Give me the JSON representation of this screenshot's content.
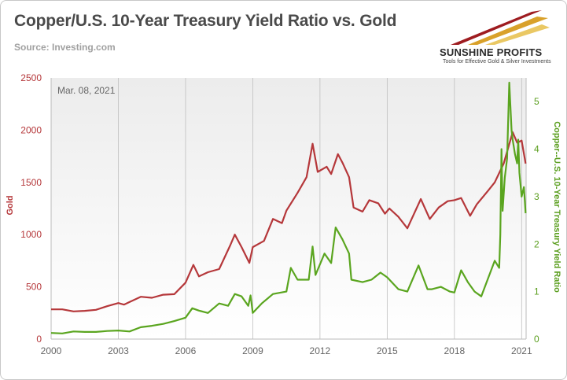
{
  "chart_data": {
    "type": "line",
    "title": "Copper/U.S. 10-Year Treasury Yield Ratio vs. Gold",
    "source": "Source: Investing.com",
    "annotation": "Mar. 08, 2021",
    "xlabel": "",
    "x_ticks": [
      "2000",
      "2003",
      "2006",
      "2009",
      "2012",
      "2015",
      "2018",
      "2021"
    ],
    "xlim": [
      2000,
      2021.2
    ],
    "ylabel_left": "Gold",
    "ylim_left": [
      0,
      2500
    ],
    "yticks_left": [
      "0",
      "500",
      "1000",
      "1500",
      "2000",
      "2500"
    ],
    "ylabel_right": "Copper--U.S. 10-Year Treasury Yield Ratio",
    "ylim_right": [
      0,
      5.5
    ],
    "yticks_right": [
      "0",
      "1",
      "2",
      "3",
      "4",
      "5"
    ],
    "grid": "vertical",
    "colors": {
      "gold": "#b5373a",
      "ratio": "#5aa51f",
      "tick_left": "#b5373a",
      "tick_right": "#5a9e1e"
    },
    "series": [
      {
        "axis": "left",
        "color": "#b5373a",
        "points": [
          [
            2000.0,
            285
          ],
          [
            2000.5,
            285
          ],
          [
            2001.0,
            265
          ],
          [
            2001.5,
            270
          ],
          [
            2002.0,
            280
          ],
          [
            2002.5,
            315
          ],
          [
            2003.0,
            345
          ],
          [
            2003.25,
            330
          ],
          [
            2003.5,
            355
          ],
          [
            2004.0,
            405
          ],
          [
            2004.5,
            395
          ],
          [
            2005.0,
            425
          ],
          [
            2005.5,
            430
          ],
          [
            2006.0,
            540
          ],
          [
            2006.35,
            710
          ],
          [
            2006.6,
            600
          ],
          [
            2007.0,
            640
          ],
          [
            2007.5,
            670
          ],
          [
            2008.0,
            900
          ],
          [
            2008.2,
            1000
          ],
          [
            2008.5,
            880
          ],
          [
            2008.85,
            730
          ],
          [
            2009.0,
            880
          ],
          [
            2009.5,
            940
          ],
          [
            2009.9,
            1150
          ],
          [
            2010.3,
            1110
          ],
          [
            2010.5,
            1230
          ],
          [
            2011.0,
            1400
          ],
          [
            2011.4,
            1550
          ],
          [
            2011.67,
            1870
          ],
          [
            2011.9,
            1600
          ],
          [
            2012.3,
            1650
          ],
          [
            2012.5,
            1580
          ],
          [
            2012.8,
            1770
          ],
          [
            2013.0,
            1690
          ],
          [
            2013.3,
            1550
          ],
          [
            2013.5,
            1260
          ],
          [
            2013.9,
            1220
          ],
          [
            2014.2,
            1330
          ],
          [
            2014.6,
            1300
          ],
          [
            2014.9,
            1200
          ],
          [
            2015.1,
            1250
          ],
          [
            2015.5,
            1170
          ],
          [
            2015.9,
            1060
          ],
          [
            2016.5,
            1340
          ],
          [
            2016.9,
            1150
          ],
          [
            2017.3,
            1260
          ],
          [
            2017.7,
            1320
          ],
          [
            2018.0,
            1330
          ],
          [
            2018.3,
            1350
          ],
          [
            2018.7,
            1180
          ],
          [
            2019.0,
            1290
          ],
          [
            2019.5,
            1420
          ],
          [
            2019.8,
            1500
          ],
          [
            2020.2,
            1680
          ],
          [
            2020.6,
            1980
          ],
          [
            2020.8,
            1880
          ],
          [
            2021.0,
            1900
          ],
          [
            2021.18,
            1680
          ]
        ]
      },
      {
        "axis": "right",
        "color": "#5aa51f",
        "points": [
          [
            2000.0,
            0.13
          ],
          [
            2000.5,
            0.12
          ],
          [
            2001.0,
            0.16
          ],
          [
            2001.5,
            0.15
          ],
          [
            2002.0,
            0.15
          ],
          [
            2002.5,
            0.17
          ],
          [
            2003.0,
            0.18
          ],
          [
            2003.5,
            0.16
          ],
          [
            2004.0,
            0.25
          ],
          [
            2004.5,
            0.28
          ],
          [
            2005.0,
            0.32
          ],
          [
            2005.5,
            0.38
          ],
          [
            2006.0,
            0.45
          ],
          [
            2006.3,
            0.65
          ],
          [
            2006.6,
            0.6
          ],
          [
            2007.0,
            0.55
          ],
          [
            2007.5,
            0.75
          ],
          [
            2007.9,
            0.7
          ],
          [
            2008.2,
            0.95
          ],
          [
            2008.5,
            0.9
          ],
          [
            2008.8,
            0.7
          ],
          [
            2008.9,
            0.92
          ],
          [
            2009.0,
            0.55
          ],
          [
            2009.4,
            0.75
          ],
          [
            2009.9,
            0.95
          ],
          [
            2010.5,
            1.0
          ],
          [
            2010.7,
            1.5
          ],
          [
            2011.0,
            1.25
          ],
          [
            2011.5,
            1.25
          ],
          [
            2011.67,
            1.95
          ],
          [
            2011.8,
            1.35
          ],
          [
            2012.2,
            1.8
          ],
          [
            2012.5,
            1.6
          ],
          [
            2012.7,
            2.35
          ],
          [
            2013.0,
            2.1
          ],
          [
            2013.3,
            1.8
          ],
          [
            2013.4,
            1.25
          ],
          [
            2013.9,
            1.2
          ],
          [
            2014.3,
            1.25
          ],
          [
            2014.7,
            1.4
          ],
          [
            2015.0,
            1.3
          ],
          [
            2015.5,
            1.05
          ],
          [
            2015.9,
            1.0
          ],
          [
            2016.4,
            1.55
          ],
          [
            2016.8,
            1.05
          ],
          [
            2017.0,
            1.05
          ],
          [
            2017.4,
            1.1
          ],
          [
            2017.8,
            1.0
          ],
          [
            2018.0,
            0.98
          ],
          [
            2018.3,
            1.45
          ],
          [
            2018.6,
            1.2
          ],
          [
            2018.9,
            1.0
          ],
          [
            2019.2,
            0.9
          ],
          [
            2019.6,
            1.4
          ],
          [
            2019.8,
            1.65
          ],
          [
            2020.0,
            1.5
          ],
          [
            2020.05,
            2.2
          ],
          [
            2020.1,
            4.0
          ],
          [
            2020.15,
            2.7
          ],
          [
            2020.25,
            3.4
          ],
          [
            2020.35,
            3.8
          ],
          [
            2020.45,
            5.4
          ],
          [
            2020.55,
            4.4
          ],
          [
            2020.6,
            4.2
          ],
          [
            2020.7,
            3.9
          ],
          [
            2020.8,
            3.7
          ],
          [
            2020.85,
            4.2
          ],
          [
            2020.9,
            3.5
          ],
          [
            2021.0,
            3.0
          ],
          [
            2021.1,
            3.2
          ],
          [
            2021.18,
            2.65
          ]
        ]
      }
    ]
  },
  "logo": {
    "name": "SUNSHINE PROFITS",
    "tagline": "Tools for Effective Gold & Silver Investments"
  }
}
